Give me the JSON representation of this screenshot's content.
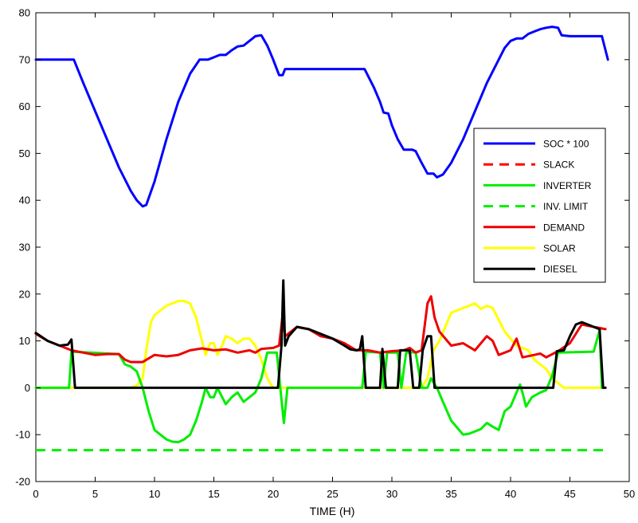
{
  "chart_data": {
    "type": "line",
    "title": "",
    "xlabel": "TIME (H)",
    "ylabel": "",
    "xlim": [
      0,
      50
    ],
    "ylim": [
      -20,
      80
    ],
    "xticks": [
      0,
      5,
      10,
      15,
      20,
      25,
      30,
      35,
      40,
      45,
      50
    ],
    "yticks": [
      -20,
      -10,
      0,
      10,
      20,
      30,
      40,
      50,
      60,
      70,
      80
    ],
    "grid": false,
    "legend_position": "right",
    "series": [
      {
        "name": "SOC * 100",
        "color": "#0000ff",
        "dash": "solid",
        "points": [
          [
            0,
            70
          ],
          [
            3.2,
            70
          ],
          [
            4,
            65
          ],
          [
            5,
            59
          ],
          [
            6,
            53
          ],
          [
            7,
            47
          ],
          [
            8,
            42
          ],
          [
            8.5,
            40
          ],
          [
            9,
            38.7
          ],
          [
            9.3,
            39
          ],
          [
            10,
            44
          ],
          [
            11,
            53
          ],
          [
            12,
            61
          ],
          [
            13,
            67
          ],
          [
            13.8,
            70
          ],
          [
            14.5,
            70
          ],
          [
            15,
            70.5
          ],
          [
            15.5,
            71
          ],
          [
            16,
            71
          ],
          [
            16.5,
            72
          ],
          [
            17,
            72.8
          ],
          [
            17.5,
            73
          ],
          [
            18,
            74
          ],
          [
            18.5,
            75
          ],
          [
            19,
            75.2
          ],
          [
            19.5,
            73
          ],
          [
            20,
            70
          ],
          [
            20.5,
            66.7
          ],
          [
            20.8,
            66.7
          ],
          [
            21,
            68
          ],
          [
            22,
            68
          ],
          [
            25,
            68
          ],
          [
            27.7,
            68
          ],
          [
            28.5,
            64
          ],
          [
            29,
            61
          ],
          [
            29.3,
            58.7
          ],
          [
            29.7,
            58.5
          ],
          [
            30,
            56
          ],
          [
            30.5,
            53
          ],
          [
            31,
            50.8
          ],
          [
            31.7,
            50.8
          ],
          [
            32,
            50.5
          ],
          [
            32.5,
            48
          ],
          [
            33,
            45.7
          ],
          [
            33.5,
            45.7
          ],
          [
            33.8,
            44.9
          ],
          [
            34.3,
            45.5
          ],
          [
            35,
            48
          ],
          [
            36,
            53
          ],
          [
            37,
            59
          ],
          [
            38,
            65
          ],
          [
            39,
            70
          ],
          [
            39.5,
            72.5
          ],
          [
            40,
            74
          ],
          [
            40.5,
            74.5
          ],
          [
            41,
            74.5
          ],
          [
            41.5,
            75.5
          ],
          [
            42,
            76
          ],
          [
            42.5,
            76.5
          ],
          [
            43,
            76.8
          ],
          [
            43.5,
            77
          ],
          [
            44,
            76.8
          ],
          [
            44.3,
            75.2
          ],
          [
            45,
            75
          ],
          [
            47.7,
            75
          ],
          [
            48.2,
            70
          ]
        ]
      },
      {
        "name": "SLACK",
        "color": "#ff0000",
        "dash": "dashed",
        "points": []
      },
      {
        "name": "INVERTER",
        "color": "#00ee00",
        "dash": "solid",
        "points": [
          [
            0,
            0
          ],
          [
            2.8,
            0
          ],
          [
            3,
            7.7
          ],
          [
            7,
            7.2
          ],
          [
            7.5,
            5
          ],
          [
            8,
            4.5
          ],
          [
            8.5,
            3.5
          ],
          [
            9,
            0
          ],
          [
            9.5,
            -5
          ],
          [
            10,
            -9
          ],
          [
            10.5,
            -10
          ],
          [
            11,
            -11
          ],
          [
            11.5,
            -11.5
          ],
          [
            12,
            -11.6
          ],
          [
            12.5,
            -11
          ],
          [
            13,
            -10
          ],
          [
            13.5,
            -7
          ],
          [
            14,
            -3
          ],
          [
            14.3,
            0
          ],
          [
            14.7,
            -2
          ],
          [
            15,
            -2
          ],
          [
            15.3,
            0
          ],
          [
            15.7,
            -2
          ],
          [
            16,
            -3.5
          ],
          [
            16.5,
            -2
          ],
          [
            17,
            -1
          ],
          [
            17.5,
            -3
          ],
          [
            18,
            -2
          ],
          [
            18.5,
            -1
          ],
          [
            19,
            2
          ],
          [
            19.5,
            7.5
          ],
          [
            20.3,
            7.5
          ],
          [
            20.6,
            0
          ],
          [
            20.9,
            -7.5
          ],
          [
            21.2,
            0
          ],
          [
            27.5,
            0
          ],
          [
            27.8,
            7.7
          ],
          [
            29,
            7.5
          ],
          [
            29.3,
            0
          ],
          [
            29.6,
            7.5
          ],
          [
            30.5,
            7.5
          ],
          [
            30.8,
            0
          ],
          [
            31.2,
            7.5
          ],
          [
            32,
            7.6
          ],
          [
            32.5,
            0
          ],
          [
            33,
            0
          ],
          [
            33.3,
            2
          ],
          [
            33.8,
            0
          ],
          [
            34.3,
            -3
          ],
          [
            35,
            -7
          ],
          [
            35.5,
            -8.5
          ],
          [
            36,
            -10
          ],
          [
            36.5,
            -9.8
          ],
          [
            37,
            -9.3
          ],
          [
            37.5,
            -8.8
          ],
          [
            38,
            -7.5
          ],
          [
            38.5,
            -8.3
          ],
          [
            39,
            -9
          ],
          [
            39.5,
            -5
          ],
          [
            40,
            -4
          ],
          [
            40.5,
            -1
          ],
          [
            40.8,
            0.7
          ],
          [
            41,
            -1
          ],
          [
            41.3,
            -4
          ],
          [
            41.8,
            -2
          ],
          [
            42.5,
            -1
          ],
          [
            43,
            -0.5
          ],
          [
            43.5,
            2.5
          ],
          [
            44,
            7.5
          ],
          [
            47,
            7.7
          ],
          [
            47.5,
            12.3
          ],
          [
            47.7,
            0
          ]
        ]
      },
      {
        "name": "INV. LIMIT",
        "color": "#00ee00",
        "dash": "dashed",
        "points": [
          [
            0,
            -13.3
          ],
          [
            48,
            -13.3
          ]
        ]
      },
      {
        "name": "DEMAND",
        "color": "#ee0000",
        "dash": "solid",
        "points": [
          [
            0,
            11.5
          ],
          [
            1,
            10
          ],
          [
            2,
            9
          ],
          [
            3,
            8
          ],
          [
            4,
            7.5
          ],
          [
            5,
            7
          ],
          [
            6,
            7.2
          ],
          [
            7,
            7.2
          ],
          [
            7.5,
            6
          ],
          [
            8,
            5.5
          ],
          [
            9,
            5.5
          ],
          [
            10,
            7
          ],
          [
            11,
            6.7
          ],
          [
            12,
            7
          ],
          [
            13,
            8
          ],
          [
            14,
            8.4
          ],
          [
            15,
            8
          ],
          [
            16,
            8.2
          ],
          [
            17,
            7.5
          ],
          [
            18,
            8
          ],
          [
            18.5,
            7.5
          ],
          [
            19,
            8.3
          ],
          [
            20,
            8.5
          ],
          [
            20.5,
            9
          ],
          [
            20.8,
            15.5
          ],
          [
            21,
            11
          ],
          [
            22,
            13
          ],
          [
            23,
            12.5
          ],
          [
            24,
            11
          ],
          [
            25,
            10.5
          ],
          [
            26,
            9.5
          ],
          [
            27,
            8
          ],
          [
            28,
            8
          ],
          [
            29,
            7.5
          ],
          [
            30,
            7.8
          ],
          [
            31,
            8
          ],
          [
            31.5,
            8.5
          ],
          [
            32,
            7.5
          ],
          [
            32.5,
            8
          ],
          [
            33,
            18
          ],
          [
            33.3,
            19.5
          ],
          [
            33.6,
            15
          ],
          [
            34,
            12
          ],
          [
            35,
            9
          ],
          [
            36,
            9.5
          ],
          [
            37,
            8
          ],
          [
            38,
            11
          ],
          [
            38.5,
            10
          ],
          [
            39,
            7
          ],
          [
            40,
            8
          ],
          [
            40.5,
            10.5
          ],
          [
            41,
            6.5
          ],
          [
            42,
            7
          ],
          [
            42.5,
            7.3
          ],
          [
            43,
            6.5
          ],
          [
            44,
            7.8
          ],
          [
            45,
            9.5
          ],
          [
            46,
            13.5
          ],
          [
            47,
            13
          ],
          [
            48,
            12.5
          ]
        ]
      },
      {
        "name": "SOLAR",
        "color": "#ffff00",
        "dash": "solid",
        "points": [
          [
            0,
            0
          ],
          [
            7.5,
            0
          ],
          [
            8,
            0
          ],
          [
            8.5,
            0.5
          ],
          [
            9,
            2
          ],
          [
            9.3,
            8
          ],
          [
            9.7,
            14
          ],
          [
            10,
            15.5
          ],
          [
            11,
            17.5
          ],
          [
            12,
            18.5
          ],
          [
            12.5,
            18.5
          ],
          [
            13,
            18
          ],
          [
            13.5,
            15
          ],
          [
            14,
            10
          ],
          [
            14.3,
            7
          ],
          [
            14.7,
            9.5
          ],
          [
            15,
            9.5
          ],
          [
            15.3,
            7
          ],
          [
            15.7,
            9
          ],
          [
            16,
            11
          ],
          [
            16.5,
            10.5
          ],
          [
            17,
            9.5
          ],
          [
            17.5,
            10.5
          ],
          [
            18,
            10.5
          ],
          [
            18.5,
            9
          ],
          [
            19,
            6
          ],
          [
            19.5,
            2
          ],
          [
            20,
            0
          ],
          [
            32.5,
            0
          ],
          [
            33,
            2
          ],
          [
            33.5,
            8
          ],
          [
            34,
            10
          ],
          [
            34.5,
            13
          ],
          [
            35,
            16
          ],
          [
            36,
            17
          ],
          [
            37,
            18
          ],
          [
            37.5,
            16.8
          ],
          [
            38,
            17.5
          ],
          [
            38.5,
            17
          ],
          [
            39,
            14.5
          ],
          [
            39.5,
            12
          ],
          [
            40,
            10.5
          ],
          [
            40.5,
            9
          ],
          [
            41,
            8.5
          ],
          [
            41.5,
            8
          ],
          [
            42,
            6
          ],
          [
            43,
            4
          ],
          [
            43.5,
            2
          ],
          [
            44,
            1
          ],
          [
            44.5,
            0
          ],
          [
            47.7,
            0
          ]
        ]
      },
      {
        "name": "DIESEL",
        "color": "#000000",
        "dash": "solid",
        "points": [
          [
            0,
            11.7
          ],
          [
            1,
            10
          ],
          [
            2,
            9
          ],
          [
            2.7,
            9.2
          ],
          [
            3,
            10.3
          ],
          [
            3.3,
            0
          ],
          [
            20.4,
            0
          ],
          [
            20.7,
            9
          ],
          [
            20.85,
            22.9
          ],
          [
            21,
            9
          ],
          [
            21.3,
            11
          ],
          [
            22,
            13
          ],
          [
            23,
            12.5
          ],
          [
            24,
            11.5
          ],
          [
            25,
            10.5
          ],
          [
            26,
            9
          ],
          [
            26.5,
            8.2
          ],
          [
            27,
            8
          ],
          [
            27.3,
            8.2
          ],
          [
            27.5,
            11
          ],
          [
            27.8,
            0
          ],
          [
            29,
            0
          ],
          [
            29.2,
            8.3
          ],
          [
            29.5,
            0
          ],
          [
            30.5,
            0
          ],
          [
            30.7,
            8
          ],
          [
            31.5,
            8
          ],
          [
            31.8,
            0
          ],
          [
            32.3,
            0
          ],
          [
            32.6,
            8
          ],
          [
            33,
            11
          ],
          [
            33.3,
            11
          ],
          [
            33.6,
            0
          ],
          [
            43.6,
            0
          ],
          [
            43.9,
            7.8
          ],
          [
            44.5,
            8
          ],
          [
            45,
            11
          ],
          [
            45.5,
            13.5
          ],
          [
            46,
            14
          ],
          [
            46.5,
            13.5
          ],
          [
            47,
            13
          ],
          [
            47.5,
            12.5
          ],
          [
            47.8,
            0
          ],
          [
            48,
            0
          ]
        ]
      }
    ]
  }
}
